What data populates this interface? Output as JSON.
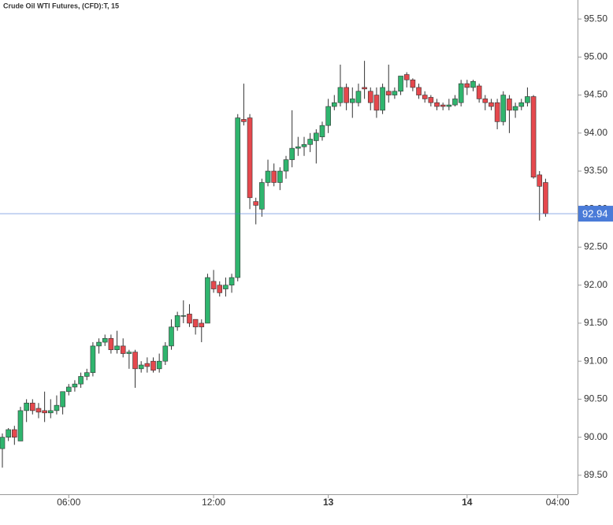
{
  "chart_data": {
    "type": "candlestick",
    "title": "Crude Oil WTI Futures, (CFD):T, 15",
    "categories": [
      null,
      null,
      null,
      null,
      null,
      null,
      null,
      null,
      null,
      null,
      null,
      "06:00",
      null,
      null,
      null,
      null,
      null,
      null,
      null,
      null,
      null,
      null,
      null,
      null,
      null,
      null,
      null,
      null,
      null,
      null,
      null,
      null,
      null,
      null,
      null,
      "12:00",
      null,
      null,
      null,
      null,
      null,
      null,
      null,
      null,
      null,
      null,
      null,
      null,
      null,
      null,
      null,
      null,
      null,
      null,
      "13",
      null,
      null,
      null,
      null,
      null,
      null,
      null,
      null,
      null,
      null,
      null,
      null,
      null,
      null,
      null,
      null,
      null,
      null,
      null,
      null,
      null,
      null,
      "14",
      null,
      null,
      null,
      null,
      null,
      null,
      null,
      null,
      null,
      null,
      null,
      null,
      null,
      null,
      "04:00"
    ],
    "open": [
      89.85,
      90.0,
      90.1,
      89.95,
      90.35,
      90.45,
      90.38,
      90.35,
      90.32,
      90.35,
      90.4,
      90.6,
      90.66,
      90.7,
      90.8,
      90.85,
      91.2,
      91.25,
      91.3,
      91.15,
      91.2,
      91.1,
      91.12,
      90.9,
      90.97,
      91.0,
      90.9,
      91.0,
      91.2,
      91.45,
      91.6,
      91.62,
      91.55,
      91.5,
      91.5,
      92.05,
      92.0,
      91.95,
      92.0,
      92.1,
      94.18,
      94.2,
      93.1,
      93.0,
      93.35,
      93.5,
      93.35,
      93.5,
      93.65,
      93.8,
      93.82,
      93.85,
      93.9,
      93.95,
      94.1,
      94.35,
      94.4,
      94.6,
      94.4,
      94.4,
      94.6,
      94.55,
      94.5,
      94.3,
      94.55,
      94.5,
      94.55,
      94.77,
      94.7,
      94.6,
      94.5,
      94.47,
      94.4,
      94.37,
      94.35,
      94.37,
      94.4,
      94.65,
      94.6,
      94.62,
      94.45,
      94.4,
      94.4,
      94.15,
      94.45,
      94.3,
      94.35,
      94.4,
      94.48,
      93.45,
      93.35,
      null,
      null
    ],
    "high": [
      90.05,
      90.12,
      90.15,
      90.4,
      90.5,
      90.5,
      90.45,
      90.6,
      90.5,
      90.55,
      90.6,
      90.7,
      90.75,
      90.85,
      90.9,
      91.25,
      91.3,
      91.35,
      91.35,
      91.4,
      91.3,
      91.15,
      91.15,
      91.0,
      91.05,
      91.05,
      91.1,
      91.25,
      91.55,
      91.65,
      91.8,
      91.75,
      91.55,
      91.55,
      92.15,
      92.2,
      92.05,
      92.1,
      92.15,
      94.25,
      94.65,
      94.25,
      93.15,
      93.4,
      93.65,
      93.6,
      93.55,
      93.7,
      94.3,
      93.95,
      93.95,
      94.0,
      94.05,
      94.15,
      94.45,
      94.5,
      94.9,
      94.65,
      94.6,
      94.65,
      94.95,
      94.6,
      94.6,
      94.65,
      94.9,
      94.6,
      94.75,
      94.8,
      94.72,
      94.65,
      94.55,
      94.5,
      94.45,
      94.4,
      94.45,
      94.5,
      94.7,
      94.7,
      94.7,
      94.65,
      94.5,
      94.45,
      94.45,
      94.55,
      94.5,
      94.4,
      94.45,
      94.6,
      94.5,
      93.5,
      93.4,
      null,
      null
    ],
    "low": [
      89.6,
      89.95,
      89.9,
      89.95,
      90.2,
      90.3,
      90.25,
      90.2,
      90.25,
      90.3,
      90.3,
      90.55,
      90.6,
      90.65,
      90.75,
      90.8,
      91.1,
      91.2,
      91.1,
      91.1,
      91.05,
      90.9,
      90.65,
      90.85,
      90.85,
      90.85,
      90.85,
      90.95,
      91.15,
      91.4,
      91.5,
      91.45,
      91.35,
      91.25,
      91.5,
      91.9,
      91.85,
      91.85,
      91.9,
      92.05,
      94.1,
      93.0,
      92.8,
      92.9,
      93.3,
      93.3,
      93.25,
      93.4,
      93.55,
      93.7,
      93.7,
      93.75,
      93.6,
      93.9,
      94.0,
      94.3,
      94.35,
      94.3,
      94.2,
      94.35,
      94.45,
      94.3,
      94.2,
      94.25,
      94.4,
      94.45,
      94.5,
      94.6,
      94.55,
      94.45,
      94.4,
      94.35,
      94.3,
      94.3,
      94.3,
      94.35,
      94.35,
      94.5,
      94.55,
      94.4,
      94.3,
      94.3,
      94.05,
      94.1,
      94.0,
      94.2,
      94.3,
      94.35,
      93.4,
      92.85,
      92.9,
      null,
      null
    ],
    "close": [
      90.0,
      90.1,
      90.0,
      90.35,
      90.45,
      90.35,
      90.33,
      90.32,
      90.35,
      90.42,
      90.6,
      90.66,
      90.7,
      90.8,
      90.85,
      91.2,
      91.25,
      91.3,
      91.15,
      91.2,
      91.1,
      91.12,
      90.9,
      90.95,
      90.93,
      90.88,
      91.0,
      91.2,
      91.45,
      91.6,
      91.6,
      91.5,
      91.45,
      91.45,
      92.1,
      91.95,
      91.9,
      92.0,
      92.1,
      94.2,
      94.15,
      93.15,
      93.05,
      93.35,
      93.5,
      93.35,
      93.5,
      93.65,
      93.8,
      93.82,
      93.85,
      93.92,
      94.0,
      94.1,
      94.35,
      94.4,
      94.6,
      94.4,
      94.45,
      94.55,
      94.58,
      94.4,
      94.3,
      94.6,
      94.5,
      94.55,
      94.75,
      94.7,
      94.6,
      94.5,
      94.45,
      94.4,
      94.35,
      94.35,
      94.37,
      94.45,
      94.65,
      94.6,
      94.68,
      94.45,
      94.4,
      94.35,
      94.15,
      94.5,
      94.3,
      94.35,
      94.4,
      94.48,
      93.42,
      93.3,
      92.94,
      null,
      null
    ],
    "up_color": "#2fb56e",
    "down_color": "#e5484d",
    "price_line_color": "#4a7bd8",
    "last_price": 92.94,
    "ylim": [
      89.25,
      95.75
    ],
    "yticks": [
      {
        "value": 89.5,
        "label": "89.50"
      },
      {
        "value": 90,
        "label": "90.00"
      },
      {
        "value": 90.5,
        "label": "90.50"
      },
      {
        "value": 91,
        "label": "91.00"
      },
      {
        "value": 91.5,
        "label": "91.50"
      },
      {
        "value": 92,
        "label": "92.00"
      },
      {
        "value": 92.5,
        "label": "92.50"
      },
      {
        "value": 93,
        "label": "93.00"
      },
      {
        "value": 93.5,
        "label": "93.50"
      },
      {
        "value": 94,
        "label": "94.00"
      },
      {
        "value": 94.5,
        "label": "94.50"
      },
      {
        "value": 95,
        "label": "95.00"
      },
      {
        "value": 95.5,
        "label": "95.50"
      }
    ]
  }
}
